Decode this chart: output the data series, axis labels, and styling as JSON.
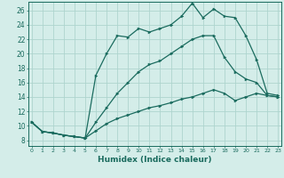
{
  "xlabel": "Humidex (Indice chaleur)",
  "bg_color": "#d4ede9",
  "grid_color": "#aed4ce",
  "line_color": "#1a6b5e",
  "x_ticks": [
    0,
    1,
    2,
    3,
    4,
    5,
    6,
    7,
    8,
    9,
    10,
    11,
    12,
    13,
    14,
    15,
    16,
    17,
    18,
    19,
    20,
    21,
    22,
    23
  ],
  "y_ticks": [
    8,
    10,
    12,
    14,
    16,
    18,
    20,
    22,
    24,
    26
  ],
  "xlim": [
    -0.3,
    23.3
  ],
  "ylim": [
    7.2,
    27.2
  ],
  "line1_x": [
    0,
    1,
    2,
    3,
    4,
    5,
    6,
    7,
    8,
    9,
    10,
    11,
    12,
    13,
    14,
    15,
    16,
    17,
    18,
    19,
    20,
    21,
    22,
    23
  ],
  "line1_y": [
    10.5,
    9.2,
    9.0,
    8.7,
    8.5,
    8.3,
    17.0,
    20.0,
    22.5,
    22.3,
    23.5,
    23.0,
    23.5,
    24.0,
    25.2,
    27.0,
    25.0,
    26.2,
    25.2,
    25.0,
    22.5,
    19.2,
    14.5,
    14.2
  ],
  "line2_x": [
    0,
    1,
    2,
    3,
    4,
    5,
    6,
    7,
    8,
    9,
    10,
    11,
    12,
    13,
    14,
    15,
    16,
    17,
    18,
    19,
    20,
    21,
    22,
    23
  ],
  "line2_y": [
    10.5,
    9.2,
    9.0,
    8.7,
    8.5,
    8.3,
    10.5,
    12.5,
    14.5,
    16.0,
    17.5,
    18.5,
    19.0,
    20.0,
    21.0,
    22.0,
    22.5,
    22.5,
    19.5,
    17.5,
    16.5,
    16.0,
    14.2,
    14.0
  ],
  "line3_x": [
    0,
    1,
    2,
    3,
    4,
    5,
    6,
    7,
    8,
    9,
    10,
    11,
    12,
    13,
    14,
    15,
    16,
    17,
    18,
    19,
    20,
    21,
    22,
    23
  ],
  "line3_y": [
    10.5,
    9.2,
    9.0,
    8.7,
    8.5,
    8.3,
    9.3,
    10.3,
    11.0,
    11.5,
    12.0,
    12.5,
    12.8,
    13.2,
    13.7,
    14.0,
    14.5,
    15.0,
    14.5,
    13.5,
    14.0,
    14.5,
    14.2,
    14.0
  ]
}
